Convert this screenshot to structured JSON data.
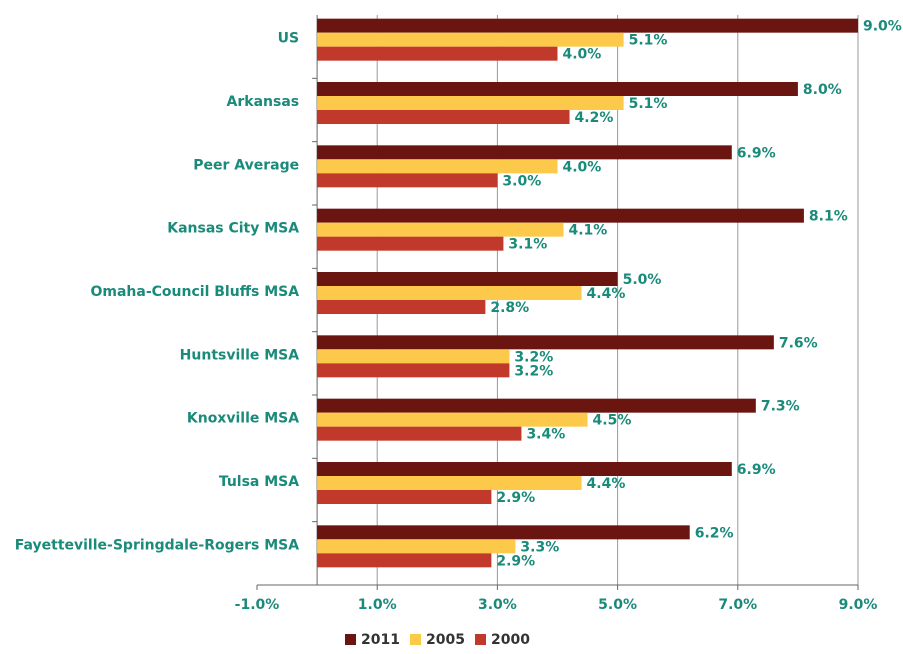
{
  "chart_data": {
    "type": "hbar",
    "categories": [
      "US",
      "Arkansas",
      "Peer Average",
      "Kansas City MSA",
      "Omaha-Council Bluffs MSA",
      "Huntsville MSA",
      "Knoxville MSA",
      "Tulsa MSA",
      "Fayetteville-Springdale-Rogers MSA"
    ],
    "series": [
      {
        "name": "2011",
        "color": "#6b1511",
        "values": [
          9.0,
          8.0,
          6.9,
          8.1,
          5.0,
          7.6,
          7.3,
          6.9,
          6.2
        ],
        "value_labels": [
          "9.0%",
          "8.0%",
          "6.9%",
          "8.1%",
          "5.0%",
          "7.6%",
          "7.3%",
          "6.9%",
          "6.2%"
        ]
      },
      {
        "name": "2005",
        "color": "#fdc94a",
        "values": [
          5.1,
          5.1,
          4.0,
          4.1,
          4.4,
          3.2,
          4.5,
          4.4,
          3.3
        ],
        "value_labels": [
          "5.1%",
          "5.1%",
          "4.0%",
          "4.1%",
          "4.4%",
          "3.2%",
          "4.5%",
          "4.4%",
          "3.3%"
        ]
      },
      {
        "name": "2000",
        "color": "#c0392b",
        "values": [
          4.0,
          4.2,
          3.0,
          3.1,
          2.8,
          3.2,
          3.4,
          2.9,
          2.9
        ],
        "value_labels": [
          "4.0%",
          "4.2%",
          "3.0%",
          "3.1%",
          "2.8%",
          "3.2%",
          "3.4%",
          "2.9%",
          "2.9%"
        ]
      }
    ],
    "xlim": [
      -1,
      9
    ],
    "xticks": [
      {
        "value": -1,
        "label": "-1.0%"
      },
      {
        "value": 1,
        "label": "1.0%"
      },
      {
        "value": 3,
        "label": "3.0%"
      },
      {
        "value": 5,
        "label": "5.0%"
      },
      {
        "value": 7,
        "label": "7.0%"
      },
      {
        "value": 9,
        "label": "9.0%"
      }
    ],
    "grid": true
  }
}
